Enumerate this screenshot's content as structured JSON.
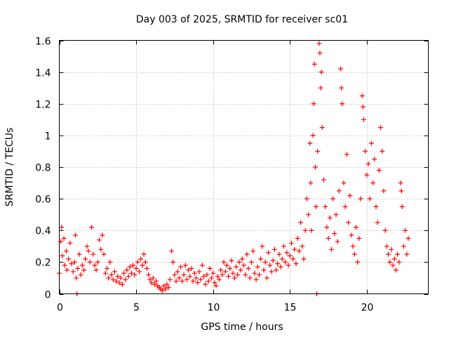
{
  "chart_data": {
    "type": "scatter",
    "title": "Day 003 of 2025, SRMTID for receiver sc01",
    "xlabel": "GPS time / hours",
    "ylabel": "SRMTID / TECUs",
    "xlim": [
      0,
      24
    ],
    "ylim": [
      0,
      1.6
    ],
    "xticks": [
      0,
      5,
      10,
      15,
      20
    ],
    "xtick_labels": [
      "0",
      "5",
      "10",
      "15",
      "20"
    ],
    "yticks": [
      0,
      0.2,
      0.4,
      0.6,
      0.8,
      1.0,
      1.2,
      1.4,
      1.6
    ],
    "ytick_labels": [
      "0",
      "0.2",
      "0.4",
      "0.6",
      "0.8",
      "1",
      "1.2",
      "1.4",
      "1.6"
    ],
    "grid": true,
    "marker": "+",
    "color": "#ff0000",
    "series": [
      {
        "name": "SRMTID",
        "points": [
          [
            0.0,
            0.13
          ],
          [
            0.1,
            0.33
          ],
          [
            0.15,
            0.42
          ],
          [
            0.2,
            0.24
          ],
          [
            0.3,
            0.35
          ],
          [
            0.35,
            0.18
          ],
          [
            0.45,
            0.27
          ],
          [
            0.5,
            0.15
          ],
          [
            0.6,
            0.22
          ],
          [
            0.7,
            0.32
          ],
          [
            0.8,
            0.19
          ],
          [
            0.9,
            0.14
          ],
          [
            1.0,
            0.2
          ],
          [
            1.05,
            0.37
          ],
          [
            1.1,
            0.1
          ],
          [
            1.15,
            0.0
          ],
          [
            1.2,
            0.16
          ],
          [
            1.3,
            0.25
          ],
          [
            1.4,
            0.12
          ],
          [
            1.5,
            0.18
          ],
          [
            1.6,
            0.15
          ],
          [
            1.7,
            0.22
          ],
          [
            1.8,
            0.3
          ],
          [
            1.9,
            0.27
          ],
          [
            2.0,
            0.2
          ],
          [
            2.1,
            0.42
          ],
          [
            2.2,
            0.25
          ],
          [
            2.3,
            0.18
          ],
          [
            2.4,
            0.15
          ],
          [
            2.5,
            0.2
          ],
          [
            2.6,
            0.34
          ],
          [
            2.7,
            0.28
          ],
          [
            2.8,
            0.37
          ],
          [
            2.9,
            0.25
          ],
          [
            3.0,
            0.13
          ],
          [
            3.1,
            0.16
          ],
          [
            3.2,
            0.1
          ],
          [
            3.3,
            0.2
          ],
          [
            3.4,
            0.12
          ],
          [
            3.5,
            0.09
          ],
          [
            3.6,
            0.14
          ],
          [
            3.7,
            0.08
          ],
          [
            3.8,
            0.11
          ],
          [
            3.9,
            0.07
          ],
          [
            4.0,
            0.1
          ],
          [
            4.1,
            0.06
          ],
          [
            4.2,
            0.13
          ],
          [
            4.3,
            0.09
          ],
          [
            4.4,
            0.15
          ],
          [
            4.5,
            0.11
          ],
          [
            4.6,
            0.17
          ],
          [
            4.7,
            0.13
          ],
          [
            4.8,
            0.18
          ],
          [
            4.9,
            0.12
          ],
          [
            5.0,
            0.16
          ],
          [
            5.1,
            0.2
          ],
          [
            5.2,
            0.14
          ],
          [
            5.3,
            0.22
          ],
          [
            5.4,
            0.18
          ],
          [
            5.5,
            0.25
          ],
          [
            5.6,
            0.2
          ],
          [
            5.7,
            0.16
          ],
          [
            5.8,
            0.12
          ],
          [
            5.9,
            0.09
          ],
          [
            6.0,
            0.07
          ],
          [
            6.1,
            0.1
          ],
          [
            6.2,
            0.06
          ],
          [
            6.3,
            0.08
          ],
          [
            6.4,
            0.05
          ],
          [
            6.5,
            0.04
          ],
          [
            6.6,
            0.03
          ],
          [
            6.7,
            0.02
          ],
          [
            6.8,
            0.05
          ],
          [
            6.9,
            0.03
          ],
          [
            7.0,
            0.06
          ],
          [
            7.1,
            0.04
          ],
          [
            7.2,
            0.09
          ],
          [
            7.3,
            0.27
          ],
          [
            7.4,
            0.2
          ],
          [
            7.5,
            0.12
          ],
          [
            7.6,
            0.08
          ],
          [
            7.7,
            0.14
          ],
          [
            7.8,
            0.1
          ],
          [
            7.9,
            0.17
          ],
          [
            8.0,
            0.08
          ],
          [
            8.1,
            0.12
          ],
          [
            8.2,
            0.18
          ],
          [
            8.3,
            0.09
          ],
          [
            8.4,
            0.15
          ],
          [
            8.5,
            0.11
          ],
          [
            8.6,
            0.16
          ],
          [
            8.7,
            0.08
          ],
          [
            8.8,
            0.13
          ],
          [
            8.9,
            0.1
          ],
          [
            9.0,
            0.07
          ],
          [
            9.1,
            0.14
          ],
          [
            9.2,
            0.09
          ],
          [
            9.3,
            0.18
          ],
          [
            9.4,
            0.11
          ],
          [
            9.5,
            0.06
          ],
          [
            9.6,
            0.12
          ],
          [
            9.7,
            0.08
          ],
          [
            9.8,
            0.16
          ],
          [
            9.9,
            0.1
          ],
          [
            10.0,
            0.13
          ],
          [
            10.1,
            0.07
          ],
          [
            10.2,
            0.05
          ],
          [
            10.3,
            0.11
          ],
          [
            10.4,
            0.09
          ],
          [
            10.5,
            0.15
          ],
          [
            10.6,
            0.12
          ],
          [
            10.7,
            0.2
          ],
          [
            10.8,
            0.14
          ],
          [
            10.9,
            0.18
          ],
          [
            11.0,
            0.11
          ],
          [
            11.1,
            0.16
          ],
          [
            11.2,
            0.21
          ],
          [
            11.3,
            0.13
          ],
          [
            11.4,
            0.1
          ],
          [
            11.5,
            0.17
          ],
          [
            11.6,
            0.12
          ],
          [
            11.7,
            0.2
          ],
          [
            11.8,
            0.15
          ],
          [
            11.9,
            0.22
          ],
          [
            12.0,
            0.18
          ],
          [
            12.1,
            0.12
          ],
          [
            12.2,
            0.25
          ],
          [
            12.3,
            0.16
          ],
          [
            12.4,
            0.1
          ],
          [
            12.5,
            0.2
          ],
          [
            12.6,
            0.27
          ],
          [
            12.7,
            0.13
          ],
          [
            12.8,
            0.09
          ],
          [
            12.9,
            0.17
          ],
          [
            13.0,
            0.12
          ],
          [
            13.1,
            0.22
          ],
          [
            13.2,
            0.3
          ],
          [
            13.3,
            0.15
          ],
          [
            13.4,
            0.2
          ],
          [
            13.5,
            0.1
          ],
          [
            13.6,
            0.26
          ],
          [
            13.7,
            0.18
          ],
          [
            13.8,
            0.14
          ],
          [
            13.9,
            0.21
          ],
          [
            14.0,
            0.28
          ],
          [
            14.1,
            0.15
          ],
          [
            14.2,
            0.19
          ],
          [
            14.3,
            0.25
          ],
          [
            14.4,
            0.17
          ],
          [
            14.5,
            0.22
          ],
          [
            14.6,
            0.3
          ],
          [
            14.7,
            0.2
          ],
          [
            14.8,
            0.26
          ],
          [
            14.9,
            0.18
          ],
          [
            15.0,
            0.24
          ],
          [
            15.1,
            0.32
          ],
          [
            15.2,
            0.22
          ],
          [
            15.3,
            0.28
          ],
          [
            15.4,
            0.19
          ],
          [
            15.5,
            0.35
          ],
          [
            15.6,
            0.27
          ],
          [
            15.7,
            0.45
          ],
          [
            15.8,
            0.3
          ],
          [
            15.9,
            0.22
          ],
          [
            16.0,
            0.4
          ],
          [
            16.1,
            0.6
          ],
          [
            16.2,
            0.5
          ],
          [
            16.3,
            0.95
          ],
          [
            16.35,
            0.7
          ],
          [
            16.4,
            0.4
          ],
          [
            16.5,
            1.0
          ],
          [
            16.55,
            1.2
          ],
          [
            16.6,
            1.45
          ],
          [
            16.65,
            0.8
          ],
          [
            16.7,
            0.55
          ],
          [
            16.75,
            0.0
          ],
          [
            16.8,
            0.9
          ],
          [
            16.9,
            1.58
          ],
          [
            16.95,
            1.52
          ],
          [
            17.0,
            1.3
          ],
          [
            17.05,
            1.4
          ],
          [
            17.1,
            1.05
          ],
          [
            17.2,
            0.72
          ],
          [
            17.3,
            0.55
          ],
          [
            17.4,
            0.42
          ],
          [
            17.5,
            0.35
          ],
          [
            17.6,
            0.48
          ],
          [
            17.7,
            0.28
          ],
          [
            17.8,
            0.6
          ],
          [
            17.9,
            0.38
          ],
          [
            18.0,
            0.5
          ],
          [
            18.1,
            0.33
          ],
          [
            18.2,
            0.65
          ],
          [
            18.3,
            1.42
          ],
          [
            18.35,
            1.3
          ],
          [
            18.4,
            1.2
          ],
          [
            18.5,
            0.7
          ],
          [
            18.6,
            0.55
          ],
          [
            18.7,
            0.88
          ],
          [
            18.8,
            0.45
          ],
          [
            18.9,
            0.62
          ],
          [
            19.0,
            0.37
          ],
          [
            19.1,
            0.3
          ],
          [
            19.2,
            0.25
          ],
          [
            19.3,
            0.42
          ],
          [
            19.4,
            0.2
          ],
          [
            19.5,
            0.35
          ],
          [
            19.6,
            0.6
          ],
          [
            19.7,
            1.25
          ],
          [
            19.75,
            1.18
          ],
          [
            19.8,
            1.1
          ],
          [
            19.9,
            0.9
          ],
          [
            20.0,
            0.75
          ],
          [
            20.1,
            0.82
          ],
          [
            20.2,
            0.6
          ],
          [
            20.3,
            0.95
          ],
          [
            20.4,
            0.7
          ],
          [
            20.5,
            0.85
          ],
          [
            20.6,
            0.55
          ],
          [
            20.7,
            0.45
          ],
          [
            20.8,
            0.78
          ],
          [
            20.9,
            1.05
          ],
          [
            21.0,
            0.9
          ],
          [
            21.1,
            0.65
          ],
          [
            21.2,
            0.4
          ],
          [
            21.3,
            0.3
          ],
          [
            21.4,
            0.25
          ],
          [
            21.5,
            0.2
          ],
          [
            21.6,
            0.28
          ],
          [
            21.7,
            0.18
          ],
          [
            21.8,
            0.22
          ],
          [
            21.9,
            0.15
          ],
          [
            22.0,
            0.25
          ],
          [
            22.1,
            0.2
          ],
          [
            22.2,
            0.7
          ],
          [
            22.25,
            0.65
          ],
          [
            22.3,
            0.55
          ],
          [
            22.4,
            0.3
          ],
          [
            22.5,
            0.4
          ],
          [
            22.6,
            0.25
          ],
          [
            22.7,
            0.35
          ]
        ]
      }
    ]
  }
}
